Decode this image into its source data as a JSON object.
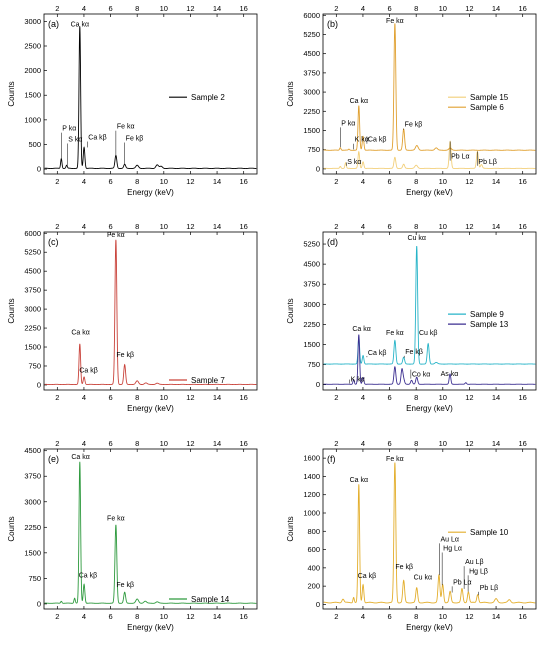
{
  "figure": {
    "name": "eds-spectra-panels"
  },
  "chart_data": [
    {
      "type": "line",
      "panel": "(a)",
      "xlabel": "Energy (keV)",
      "ylabel": "Counts",
      "xlim": [
        1,
        17
      ],
      "ylim": [
        -100,
        3150
      ],
      "xticks": [
        2,
        4,
        6,
        8,
        10,
        12,
        14,
        16
      ],
      "yticks": [
        0,
        500,
        1000,
        1500,
        2000,
        2500,
        3000
      ],
      "ytick_labels": [
        "0",
        "500",
        "1000",
        "1500",
        "2000",
        "2500",
        "3000"
      ],
      "legend_position": "middle-right",
      "grid": false,
      "series": [
        {
          "name": "Sample 2",
          "color": "#000000",
          "offset": 0,
          "base": 15,
          "peaks": [
            [
              2.3,
              200,
              0.05
            ],
            [
              2.7,
              60,
              0.05
            ],
            [
              3.69,
              2880,
              0.06
            ],
            [
              4.01,
              430,
              0.06
            ],
            [
              6.4,
              260,
              0.07
            ],
            [
              7.06,
              80,
              0.07
            ],
            [
              8.0,
              60,
              0.1
            ],
            [
              9.5,
              70,
              0.1
            ],
            [
              9.8,
              40,
              0.1
            ]
          ],
          "annotations": [
            {
              "text": "P kα",
              "x": 2.3,
              "y": 780,
              "tip": 210
            },
            {
              "text": "S kα",
              "x": 2.75,
              "y": 560,
              "tip": 70
            },
            {
              "text": "Ca kα",
              "x": 3.69,
              "y": 2900,
              "tip": null
            },
            {
              "text": "Ca kβ",
              "x": 4.25,
              "y": 600,
              "tip": 440
            },
            {
              "text": "Fe kα",
              "x": 6.4,
              "y": 820,
              "tip": 270
            },
            {
              "text": "Fe kβ",
              "x": 7.06,
              "y": 580,
              "tip": 90
            }
          ]
        }
      ]
    },
    {
      "type": "line",
      "panel": "(b)",
      "xlabel": "Energy (keV)",
      "ylabel": "Counts",
      "xlim": [
        1,
        17
      ],
      "ylim": [
        -200,
        6050
      ],
      "xticks": [
        2,
        4,
        6,
        8,
        10,
        12,
        14,
        16
      ],
      "yticks": [
        0,
        750,
        1500,
        2250,
        3000,
        3750,
        4500,
        5250,
        6000
      ],
      "ytick_labels": [
        "0",
        "750",
        "1500",
        "2250",
        "3000",
        "3750",
        "4500",
        "5250",
        "6000"
      ],
      "legend_position": "middle-right",
      "grid": false,
      "series": [
        {
          "name": "Sample 15",
          "color": "#f2cf7a",
          "offset": 0,
          "base": 20,
          "peaks": [
            [
              2.3,
              80,
              0.05
            ],
            [
              2.7,
              220,
              0.05
            ],
            [
              3.69,
              650,
              0.06
            ],
            [
              4.01,
              260,
              0.06
            ],
            [
              6.4,
              430,
              0.07
            ],
            [
              7.06,
              160,
              0.07
            ],
            [
              8.0,
              120,
              0.1
            ],
            [
              10.55,
              1050,
              0.07
            ],
            [
              12.6,
              660,
              0.07
            ],
            [
              12.9,
              150,
              0.07
            ]
          ]
        },
        {
          "name": "Sample 6",
          "color": "#e0a030",
          "offset": 700,
          "base": 30,
          "peaks": [
            [
              2.3,
              100,
              0.05
            ],
            [
              2.95,
              40,
              0.05
            ],
            [
              3.69,
              1740,
              0.06
            ],
            [
              4.01,
              540,
              0.06
            ],
            [
              6.4,
              4950,
              0.07
            ],
            [
              7.06,
              820,
              0.07
            ],
            [
              8.05,
              180,
              0.1
            ],
            [
              9.5,
              90,
              0.1
            ],
            [
              10.55,
              80,
              0.1
            ]
          ]
        }
      ],
      "annotations": [
        {
          "text": "P kα",
          "x": 2.3,
          "y": 1700,
          "tip": 850
        },
        {
          "text": "K kα",
          "x": 3.3,
          "y": 1060,
          "tip": 760
        },
        {
          "text": "S kα",
          "x": 2.75,
          "y": 200,
          "tip": 250
        },
        {
          "text": "Ca kα",
          "x": 3.69,
          "y": 2570,
          "tip": null
        },
        {
          "text": "Ca kβ",
          "x": 4.3,
          "y": 1060,
          "tip": 1270
        },
        {
          "text": "Fe kα",
          "x": 6.4,
          "y": 5700,
          "tip": null
        },
        {
          "text": "Fe kβ",
          "x": 7.06,
          "y": 1650,
          "tip": 1530
        },
        {
          "text": "Pb Lα",
          "x": 10.55,
          "y": 400,
          "tip": 1070
        },
        {
          "text": "Pb Lβ",
          "x": 12.6,
          "y": 200,
          "tip": 680
        }
      ]
    },
    {
      "type": "line",
      "panel": "(c)",
      "xlabel": "Energy (keV)",
      "ylabel": "Counts",
      "xlim": [
        1,
        17
      ],
      "ylim": [
        -200,
        6050
      ],
      "xticks": [
        2,
        4,
        6,
        8,
        10,
        12,
        14,
        16
      ],
      "yticks": [
        0,
        750,
        1500,
        2250,
        3000,
        3750,
        4500,
        5250,
        6000
      ],
      "ytick_labels": [
        "0",
        "750",
        "1500",
        "2250",
        "3000",
        "3750",
        "4500",
        "5250",
        "6000"
      ],
      "legend_position": "bottom-right",
      "grid": false,
      "series": [
        {
          "name": "Sample 7",
          "color": "#c9433b",
          "offset": 0,
          "base": 20,
          "peaks": [
            [
              3.69,
              1600,
              0.06
            ],
            [
              4.01,
              300,
              0.06
            ],
            [
              6.4,
              5720,
              0.07
            ],
            [
              7.06,
              780,
              0.07
            ],
            [
              8.0,
              140,
              0.1
            ],
            [
              8.65,
              60,
              0.1
            ],
            [
              9.5,
              50,
              0.1
            ]
          ],
          "annotations": [
            {
              "text": "Ca kα",
              "x": 3.75,
              "y": 2000,
              "tip": null
            },
            {
              "text": "Ca kβ",
              "x": 4.35,
              "y": 500,
              "tip": null
            },
            {
              "text": "Fe kα",
              "x": 6.4,
              "y": 5850,
              "tip": null
            },
            {
              "text": "Fe kβ",
              "x": 7.1,
              "y": 1100,
              "tip": null
            }
          ]
        }
      ]
    },
    {
      "type": "line",
      "panel": "(d)",
      "xlabel": "Energy (keV)",
      "ylabel": "Counts",
      "xlim": [
        1,
        17
      ],
      "ylim": [
        -200,
        5700
      ],
      "xticks": [
        2,
        4,
        6,
        8,
        10,
        12,
        14,
        16
      ],
      "yticks": [
        0,
        750,
        1500,
        2250,
        3000,
        3750,
        4500,
        5250
      ],
      "ytick_labels": [
        "0",
        "750",
        "1500",
        "2250",
        "3000",
        "3750",
        "4500",
        "5250"
      ],
      "legend_position": "middle-right",
      "grid": false,
      "series": [
        {
          "name": "Sample 9",
          "color": "#27b4c8",
          "offset": 750,
          "base": 20,
          "peaks": [
            [
              3.69,
              1000,
              0.06
            ],
            [
              4.01,
              320,
              0.06
            ],
            [
              6.4,
              880,
              0.07
            ],
            [
              7.06,
              250,
              0.07
            ],
            [
              8.04,
              4400,
              0.07
            ],
            [
              8.9,
              760,
              0.07
            ],
            [
              9.5,
              60,
              0.1
            ]
          ]
        },
        {
          "name": "Sample 13",
          "color": "#3b2e90",
          "offset": 0,
          "base": 15,
          "peaks": [
            [
              3.3,
              180,
              0.05
            ],
            [
              3.69,
              1850,
              0.06
            ],
            [
              4.01,
              260,
              0.06
            ],
            [
              6.4,
              650,
              0.07
            ],
            [
              6.93,
              550,
              0.07
            ],
            [
              7.06,
              160,
              0.07
            ],
            [
              7.65,
              150,
              0.07
            ],
            [
              8.04,
              260,
              0.07
            ],
            [
              10.54,
              380,
              0.06
            ],
            [
              11.73,
              60,
              0.06
            ]
          ]
        }
      ],
      "annotations": [
        {
          "text": "Ca kα",
          "x": 3.9,
          "y": 2000,
          "tip": null
        },
        {
          "text": "Ca kβ",
          "x": 4.3,
          "y": 1100,
          "tip": 1070
        },
        {
          "text": "Fe kα",
          "x": 6.4,
          "y": 1850,
          "tip": null
        },
        {
          "text": "Fe kβ",
          "x": 7.1,
          "y": 1150,
          "tip": 1000
        },
        {
          "text": "Cu kα",
          "x": 8.04,
          "y": 5400,
          "tip": null
        },
        {
          "text": "Cu kβ",
          "x": 8.9,
          "y": 1850,
          "tip": null
        },
        {
          "text": "K kα",
          "x": 3.0,
          "y": 120,
          "tip": 190
        },
        {
          "text": "Co kα",
          "x": 7.6,
          "y": 300,
          "tip": 560
        },
        {
          "text": "As kα",
          "x": 10.5,
          "y": 330,
          "tip": null
        }
      ]
    },
    {
      "type": "line",
      "panel": "(e)",
      "xlabel": "Energy (keV)",
      "ylabel": "Counts",
      "xlim": [
        1,
        17
      ],
      "ylim": [
        -150,
        4550
      ],
      "xticks": [
        2,
        4,
        6,
        8,
        10,
        12,
        14,
        16
      ],
      "yticks": [
        0,
        750,
        1500,
        2250,
        3000,
        3750,
        4500
      ],
      "ytick_labels": [
        "0",
        "750",
        "1500",
        "2250",
        "3000",
        "3750",
        "4500"
      ],
      "legend_position": "bottom-right",
      "grid": false,
      "series": [
        {
          "name": "Sample 14",
          "color": "#2e9a3e",
          "offset": 0,
          "base": 20,
          "peaks": [
            [
              2.3,
              60,
              0.05
            ],
            [
              3.3,
              150,
              0.05
            ],
            [
              3.69,
              4150,
              0.06
            ],
            [
              4.01,
              560,
              0.06
            ],
            [
              6.4,
              2300,
              0.07
            ],
            [
              7.06,
              320,
              0.07
            ],
            [
              8.0,
              120,
              0.1
            ],
            [
              8.6,
              60,
              0.1
            ],
            [
              9.5,
              40,
              0.1
            ]
          ],
          "annotations": [
            {
              "text": "Ca kα",
              "x": 3.75,
              "y": 4250,
              "tip": null
            },
            {
              "text": "Ca kβ",
              "x": 4.3,
              "y": 780,
              "tip": null
            },
            {
              "text": "Fe kα",
              "x": 6.4,
              "y": 2450,
              "tip": null
            },
            {
              "text": "Fe kβ",
              "x": 7.1,
              "y": 500,
              "tip": null
            }
          ]
        }
      ]
    },
    {
      "type": "line",
      "panel": "(f)",
      "xlabel": "Energy (keV)",
      "ylabel": "Counts",
      "xlim": [
        1,
        17
      ],
      "ylim": [
        -50,
        1700
      ],
      "xticks": [
        2,
        4,
        6,
        8,
        10,
        12,
        14,
        16
      ],
      "yticks": [
        0,
        200,
        400,
        600,
        800,
        1000,
        1200,
        1400,
        1600
      ],
      "ytick_labels": [
        "0",
        "200",
        "400",
        "600",
        "800",
        "1000",
        "1200",
        "1400",
        "1600"
      ],
      "legend_position": "middle-right",
      "grid": false,
      "series": [
        {
          "name": "Sample 10",
          "color": "#e3ae2c",
          "offset": 0,
          "base": 20,
          "peaks": [
            [
              2.5,
              40,
              0.08
            ],
            [
              3.3,
              60,
              0.05
            ],
            [
              3.69,
              1290,
              0.06
            ],
            [
              4.01,
              200,
              0.06
            ],
            [
              6.4,
              1530,
              0.07
            ],
            [
              7.06,
              240,
              0.07
            ],
            [
              8.04,
              160,
              0.07
            ],
            [
              9.71,
              300,
              0.07
            ],
            [
              9.99,
              200,
              0.07
            ],
            [
              10.55,
              120,
              0.07
            ],
            [
              11.44,
              150,
              0.07
            ],
            [
              11.92,
              120,
              0.07
            ],
            [
              12.62,
              90,
              0.07
            ],
            [
              14.0,
              40,
              0.1
            ],
            [
              15.0,
              30,
              0.1
            ]
          ],
          "annotations": [
            {
              "text": "Ca kα",
              "x": 3.69,
              "y": 1340,
              "tip": null
            },
            {
              "text": "Ca kβ",
              "x": 4.3,
              "y": 290,
              "tip": null
            },
            {
              "text": "Fe kα",
              "x": 6.4,
              "y": 1570,
              "tip": null
            },
            {
              "text": "Fe kβ",
              "x": 7.1,
              "y": 390,
              "tip": null
            },
            {
              "text": "Cu kα",
              "x": 8.5,
              "y": 270,
              "tip": null
            },
            {
              "text": "Au Lα",
              "x": 9.75,
              "y": 690,
              "tip": 320
            },
            {
              "text": "Hg Lα",
              "x": 9.95,
              "y": 590,
              "tip": 210
            },
            {
              "text": "Pb Lα",
              "x": 10.7,
              "y": 220,
              "tip": 130
            },
            {
              "text": "Au Lβ",
              "x": 11.6,
              "y": 440,
              "tip": 170
            },
            {
              "text": "Hg Lβ",
              "x": 11.9,
              "y": 340,
              "tip": 140
            },
            {
              "text": "Pb Lβ",
              "x": 12.7,
              "y": 160,
              "tip": 100
            }
          ]
        }
      ]
    }
  ]
}
